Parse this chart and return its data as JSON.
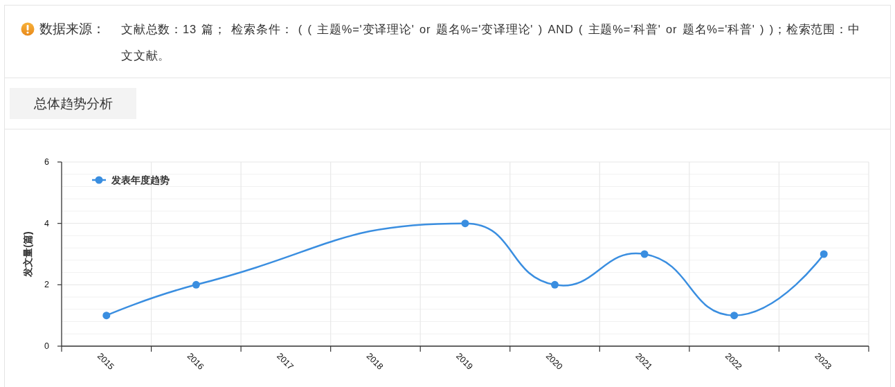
{
  "chart_data": {
    "type": "line",
    "title": "总体趋势分析",
    "ylabel": "发文量(篇)",
    "annotations": [
      "数据来源：",
      "文献总数：13 篇； 检索条件： ( ( 主题%='变译理论' or 题名%='变译理论' ) AND ( 主题%='科普' or 题名%='科普' ) )；检索范围：中文文献。"
    ],
    "series": [
      {
        "name": "发表年度趋势",
        "color": "#3a8ee0",
        "x": [
          2015,
          2016,
          2019,
          2020,
          2021,
          2022,
          2023
        ],
        "values": [
          1,
          2,
          4,
          2,
          3,
          1,
          3
        ]
      }
    ],
    "xlim": [
      2014.5,
      2023.5
    ],
    "xticks": [
      {
        "value": 2014.5,
        "label": null
      },
      2015,
      {
        "value": 2015.5,
        "label": null
      },
      2016,
      {
        "value": 2016.5,
        "label": null
      },
      2017,
      {
        "value": 2017.5,
        "label": null
      },
      2018,
      {
        "value": 2018.5,
        "label": null
      },
      2019,
      {
        "value": 2019.5,
        "label": null
      },
      2020,
      {
        "value": 2020.5,
        "label": null
      },
      2021,
      {
        "value": 2021.5,
        "label": null
      },
      2022,
      {
        "value": 2022.5,
        "label": null
      },
      2023,
      {
        "value": 2023.5,
        "label": null
      }
    ],
    "ylim": [
      0,
      6
    ],
    "yticks": [
      0,
      2,
      4,
      6
    ],
    "grid": true,
    "legend": "top left",
    "marker": "circle",
    "line_style": "solid"
  }
}
